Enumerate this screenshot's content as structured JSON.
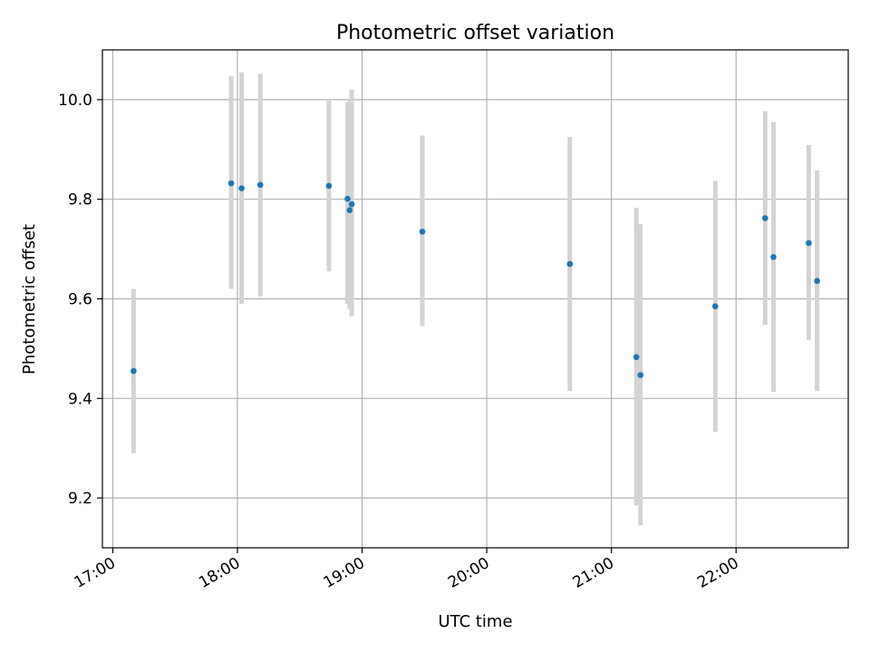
{
  "chart_data": {
    "type": "scatter",
    "title": "Photometric offset variation",
    "xlabel": "UTC time",
    "ylabel": "Photometric offset",
    "x_unit": "UTC time (HH:MM)",
    "xlim": [
      "16:55",
      "22:54"
    ],
    "ylim": [
      9.1,
      10.1
    ],
    "grid": true,
    "x_ticks": [
      "17:00",
      "18:00",
      "19:00",
      "20:00",
      "21:00",
      "22:00"
    ],
    "y_ticks": [
      9.2,
      9.4,
      9.6,
      9.8,
      10.0
    ],
    "y_tick_labels": [
      "9.2",
      "9.4",
      "9.6",
      "9.8",
      "10.0"
    ],
    "colors": {
      "point": "#1f77b4",
      "errorbar": "#d3d3d3",
      "grid": "#b0b0b0"
    },
    "points": [
      {
        "x": "17:10",
        "y": 9.455,
        "low": 9.29,
        "high": 9.62
      },
      {
        "x": "17:57",
        "y": 9.832,
        "low": 9.62,
        "high": 10.047
      },
      {
        "x": "18:02",
        "y": 9.822,
        "low": 9.59,
        "high": 10.055
      },
      {
        "x": "18:11",
        "y": 9.829,
        "low": 9.605,
        "high": 10.052
      },
      {
        "x": "18:44",
        "y": 9.827,
        "low": 9.655,
        "high": 10.0
      },
      {
        "x": "18:53",
        "y": 9.801,
        "low": 9.59,
        "high": 9.995
      },
      {
        "x": "18:54",
        "y": 9.778,
        "low": 9.58,
        "high": 10.0
      },
      {
        "x": "18:55",
        "y": 9.79,
        "low": 9.565,
        "high": 10.02
      },
      {
        "x": "19:29",
        "y": 9.735,
        "low": 9.545,
        "high": 9.928
      },
      {
        "x": "20:40",
        "y": 9.67,
        "low": 9.415,
        "high": 9.925
      },
      {
        "x": "21:12",
        "y": 9.483,
        "low": 9.185,
        "high": 9.783
      },
      {
        "x": "21:14",
        "y": 9.447,
        "low": 9.145,
        "high": 9.75
      },
      {
        "x": "21:50",
        "y": 9.585,
        "low": 9.333,
        "high": 9.837
      },
      {
        "x": "22:14",
        "y": 9.762,
        "low": 9.548,
        "high": 9.977
      },
      {
        "x": "22:18",
        "y": 9.684,
        "low": 9.413,
        "high": 9.955
      },
      {
        "x": "22:35",
        "y": 9.712,
        "low": 9.517,
        "high": 9.909
      },
      {
        "x": "22:39",
        "y": 9.636,
        "low": 9.415,
        "high": 9.858
      }
    ]
  }
}
